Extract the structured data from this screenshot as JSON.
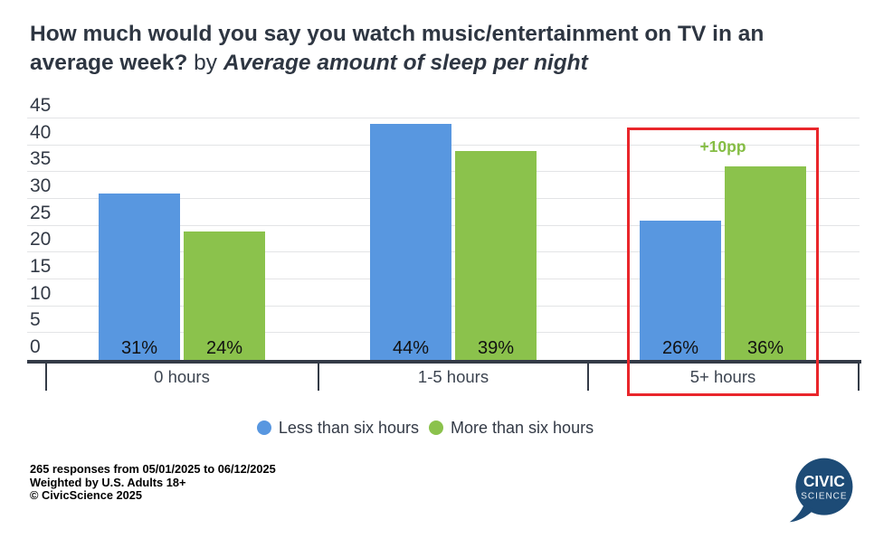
{
  "title": {
    "question": "How much would you say you watch music/entertainment on TV in an average week?",
    "connector": " by ",
    "breakdown": "Average amount of sleep per night"
  },
  "chart_data": {
    "type": "bar",
    "categories": [
      "0 hours",
      "1-5 hours",
      "5+ hours"
    ],
    "series": [
      {
        "name": "Less than six hours",
        "color": "#5897E0",
        "values": [
          31,
          44,
          26
        ],
        "labels": [
          "31%",
          "44%",
          "26%"
        ]
      },
      {
        "name": "More than six hours",
        "color": "#8BC24C",
        "values": [
          24,
          39,
          36
        ],
        "labels": [
          "24%",
          "39%",
          "36%"
        ]
      }
    ],
    "ylim": [
      0,
      45
    ],
    "yticks": [
      0,
      5,
      10,
      15,
      20,
      25,
      30,
      35,
      40,
      45
    ],
    "grid": true,
    "legend_position": "bottom",
    "annotation": {
      "text": "+10pp",
      "category_index": 2,
      "color": "#85BD44"
    },
    "highlight": {
      "category_index": 2,
      "color": "#E9262B"
    }
  },
  "legend": [
    {
      "label": "Less than six hours",
      "color": "#5897E0"
    },
    {
      "label": "More than six hours",
      "color": "#8BC24C"
    }
  ],
  "footer": {
    "line1": "265 responses from 05/01/2025 to 06/12/2025",
    "line2": "Weighted by U.S. Adults 18+",
    "line3": "© CivicScience 2025"
  },
  "logo": {
    "line1": "CIVIC",
    "line2": "SCIENCE",
    "bubble_color": "#1D4B76"
  }
}
